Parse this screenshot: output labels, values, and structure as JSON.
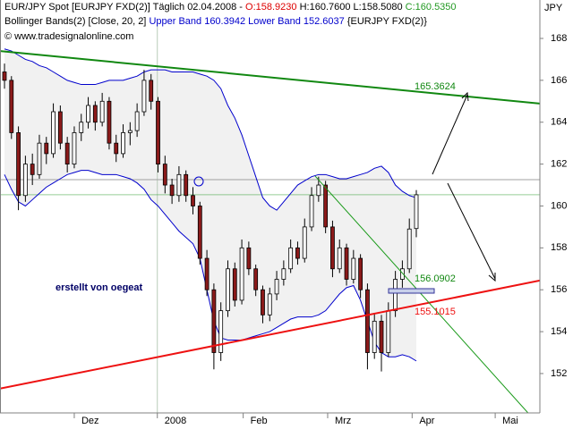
{
  "header": {
    "symbol": "EUR/JPY Spot [EURJPY FXD(2)]",
    "period": "Täglich 02.04.2008 -",
    "open": "O:158.9230",
    "high_low": "H:160.7600 L:158.5080",
    "close": "C:160.5350",
    "indicator": "Bollinger Bands(2) [Close, 20, 2]",
    "bands": "Upper Band 160.3942 Lower Band 152.6037",
    "indicator_symbol": "{EURJPY FXD(2)}",
    "copyright": "© www.tradesignalonline.com"
  },
  "chart_data": {
    "type": "candlestick",
    "y_unit": "JPY",
    "xlim": [
      -0.64,
      76.7
    ],
    "xticks": [
      {
        "value": 10.0,
        "label": "Dez"
      },
      {
        "value": 21.9,
        "label": "2008"
      },
      {
        "value": 34.2,
        "label": "Feb"
      },
      {
        "value": 46.3,
        "label": "Mrz"
      },
      {
        "value": 58.4,
        "label": "Apr"
      },
      {
        "value": 70.3,
        "label": "Mai"
      }
    ],
    "ylim": [
      150.12,
      168.64
    ],
    "yticks": [
      152,
      154,
      156,
      158,
      160,
      162,
      164,
      166,
      168
    ],
    "up_color": "#ffffff",
    "down_color": "#8b1a1a",
    "band_color": "#0000cc",
    "band_fill": "#f1f1f1",
    "last_price_color": "#2e9e2e",
    "ohlc": [
      [
        166.4,
        166.8,
        165.6,
        166.0
      ],
      [
        166.0,
        166.2,
        163.2,
        163.5
      ],
      [
        163.5,
        163.8,
        159.8,
        160.5
      ],
      [
        160.5,
        162.4,
        160.2,
        162.0
      ],
      [
        162.0,
        162.5,
        161.0,
        161.5
      ],
      [
        161.5,
        163.4,
        161.3,
        163.0
      ],
      [
        163.0,
        163.3,
        162.0,
        162.5
      ],
      [
        162.5,
        164.9,
        162.3,
        164.5
      ],
      [
        164.5,
        164.8,
        162.7,
        163.0
      ],
      [
        163.0,
        163.3,
        161.6,
        162.0
      ],
      [
        162.0,
        163.8,
        161.8,
        163.5
      ],
      [
        163.5,
        164.4,
        163.1,
        164.0
      ],
      [
        164.0,
        165.2,
        163.7,
        164.8
      ],
      [
        164.8,
        165.0,
        163.6,
        164.0
      ],
      [
        164.0,
        165.4,
        163.8,
        165.0
      ],
      [
        165.0,
        165.2,
        162.7,
        163.0
      ],
      [
        163.0,
        163.4,
        162.1,
        162.5
      ],
      [
        162.5,
        163.9,
        162.3,
        163.5
      ],
      [
        163.5,
        164.0,
        162.9,
        163.6
      ],
      [
        163.6,
        164.9,
        163.3,
        164.5
      ],
      [
        164.5,
        166.5,
        164.3,
        166.0
      ],
      [
        166.0,
        166.3,
        164.6,
        165.0
      ],
      [
        165.0,
        165.2,
        161.6,
        162.0
      ],
      [
        162.0,
        162.4,
        160.6,
        161.0
      ],
      [
        161.0,
        161.3,
        160.1,
        160.5
      ],
      [
        160.5,
        161.9,
        160.2,
        161.5
      ],
      [
        161.5,
        161.7,
        160.2,
        160.5
      ],
      [
        160.5,
        160.9,
        159.6,
        160.0
      ],
      [
        160.0,
        160.2,
        157.2,
        157.5
      ],
      [
        157.5,
        157.9,
        155.7,
        156.0
      ],
      [
        156.0,
        156.3,
        152.2,
        153.0
      ],
      [
        153.0,
        155.4,
        152.6,
        155.0
      ],
      [
        155.0,
        157.4,
        154.7,
        157.0
      ],
      [
        157.0,
        157.3,
        155.2,
        155.5
      ],
      [
        155.5,
        158.4,
        155.3,
        158.0
      ],
      [
        158.0,
        158.3,
        156.7,
        157.0
      ],
      [
        157.0,
        157.2,
        155.7,
        156.0
      ],
      [
        156.0,
        156.2,
        154.4,
        154.8
      ],
      [
        154.8,
        156.1,
        154.5,
        155.8
      ],
      [
        155.8,
        156.9,
        155.5,
        156.5
      ],
      [
        156.5,
        157.4,
        156.2,
        157.0
      ],
      [
        157.0,
        158.4,
        156.8,
        158.0
      ],
      [
        158.0,
        158.3,
        157.2,
        157.5
      ],
      [
        157.5,
        159.4,
        157.3,
        159.0
      ],
      [
        159.0,
        160.9,
        158.8,
        160.5
      ],
      [
        160.5,
        161.4,
        160.2,
        161.0
      ],
      [
        161.0,
        161.2,
        158.7,
        159.0
      ],
      [
        159.0,
        159.3,
        156.6,
        157.0
      ],
      [
        157.0,
        158.4,
        156.8,
        158.0
      ],
      [
        158.0,
        158.2,
        156.2,
        156.5
      ],
      [
        156.5,
        157.9,
        156.3,
        157.5
      ],
      [
        157.5,
        157.7,
        155.6,
        156.0
      ],
      [
        156.0,
        156.3,
        152.2,
        153.0
      ],
      [
        153.0,
        154.9,
        152.7,
        154.5
      ],
      [
        154.5,
        154.8,
        152.1,
        153.0
      ],
      [
        153.0,
        155.4,
        152.8,
        155.0
      ],
      [
        155.0,
        156.9,
        154.7,
        156.5
      ],
      [
        156.5,
        157.4,
        156.1,
        157.0
      ],
      [
        157.0,
        159.4,
        156.8,
        158.9
      ],
      [
        158.923,
        160.76,
        158.508,
        160.535
      ]
    ],
    "upper_band": [
      167.5,
      167.4,
      167.2,
      167.0,
      166.9,
      166.7,
      166.6,
      166.4,
      166.2,
      166.0,
      165.9,
      165.8,
      165.8,
      165.8,
      165.9,
      166.0,
      166.0,
      166.0,
      166.1,
      166.2,
      166.4,
      166.5,
      166.5,
      166.5,
      166.4,
      166.4,
      166.4,
      166.4,
      166.3,
      166.2,
      166.0,
      165.6,
      164.8,
      164.2,
      163.4,
      162.4,
      161.4,
      160.4,
      160.0,
      159.8,
      160.2,
      160.6,
      161.0,
      161.2,
      161.4,
      161.5,
      161.5,
      161.4,
      161.3,
      161.3,
      161.4,
      161.5,
      161.6,
      161.8,
      161.9,
      161.6,
      161.0,
      160.7,
      160.5,
      160.39
    ],
    "lower_band": [
      161.5,
      160.8,
      160.2,
      160.0,
      160.3,
      160.6,
      160.9,
      161.1,
      161.3,
      161.5,
      161.6,
      161.7,
      161.7,
      161.6,
      161.5,
      161.5,
      161.5,
      161.4,
      161.3,
      161.1,
      160.8,
      160.3,
      160.0,
      159.6,
      159.2,
      158.8,
      158.5,
      158.2,
      157.5,
      156.0,
      154.5,
      153.7,
      153.6,
      153.6,
      153.6,
      153.7,
      153.8,
      153.9,
      154.0,
      154.2,
      154.4,
      154.6,
      154.7,
      154.7,
      154.7,
      154.8,
      155.0,
      155.4,
      155.8,
      156.1,
      156.2,
      155.5,
      154.5,
      153.5,
      153.0,
      152.8,
      152.8,
      152.9,
      152.8,
      152.6
    ],
    "trendlines": [
      {
        "color": "#118811",
        "width": 2,
        "x": [
          -0.64,
          76.7
        ],
        "y": [
          167.4,
          164.89
        ]
      },
      {
        "color": "#ee1111",
        "width": 2,
        "x": [
          -0.64,
          76.7
        ],
        "y": [
          151.28,
          156.44
        ]
      },
      {
        "color": "#1a9a1a",
        "width": 1,
        "x": [
          44.5,
          75.0
        ],
        "y": [
          161.43,
          150.12
        ]
      }
    ],
    "crosshair": {
      "x": 21.9,
      "y": 161.26
    },
    "annotations": [
      {
        "text": "165.3624",
        "color": "#118811"
      },
      {
        "text": "156.0902",
        "color": "#118811"
      },
      {
        "text": "155.1015",
        "color": "#ee1111"
      },
      {
        "text": "erstellt von oegeat",
        "color": "#000066"
      }
    ]
  }
}
